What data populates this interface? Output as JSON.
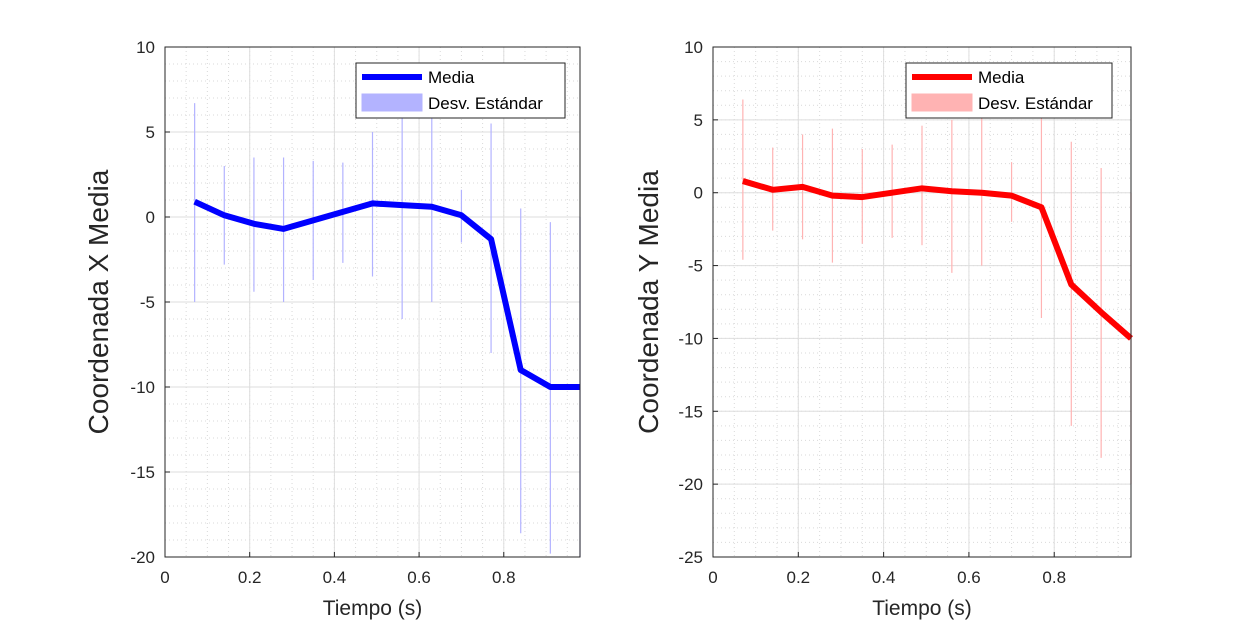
{
  "chart_data": [
    {
      "type": "line",
      "ylabel": "Coordenada X Media",
      "xlabel": "Tiempo (s)",
      "xlim": [
        0,
        0.98
      ],
      "ylim": [
        -20,
        10
      ],
      "xticks": [
        0,
        0.2,
        0.4,
        0.6,
        0.8
      ],
      "xtick_labels": [
        "0",
        "0.2",
        "0.4",
        "0.6",
        "0.8"
      ],
      "yticks": [
        10,
        5,
        0,
        -5,
        -10,
        -15,
        -20
      ],
      "ytick_labels": [
        "10",
        "5",
        "0",
        "-5",
        "-10",
        "-15",
        "-20"
      ],
      "grid": true,
      "legend": {
        "location": "top-right",
        "entries": [
          "Media",
          "Desv. Estándar"
        ]
      },
      "color": "#0000ff",
      "std_color": "#b3b3ff",
      "series": [
        {
          "name": "Media",
          "x": [
            0.07,
            0.14,
            0.21,
            0.28,
            0.35,
            0.42,
            0.49,
            0.56,
            0.63,
            0.7,
            0.77,
            0.84,
            0.91,
            0.98
          ],
          "y": [
            0.9,
            0.1,
            -0.4,
            -0.7,
            -0.2,
            0.3,
            0.8,
            0.7,
            0.6,
            0.1,
            -1.3,
            -9.0,
            -10.0,
            -10.0
          ]
        },
        {
          "name": "Desv. Estándar",
          "x": [
            0.07,
            0.14,
            0.21,
            0.28,
            0.35,
            0.42,
            0.49,
            0.56,
            0.63,
            0.7,
            0.77,
            0.84,
            0.91,
            0.98
          ],
          "lower": [
            -5.0,
            -2.8,
            -4.4,
            -5.0,
            -3.7,
            -2.7,
            -3.5,
            -6.0,
            -5.0,
            -1.5,
            -8.0,
            -18.6,
            -19.8,
            -20.0
          ],
          "upper": [
            6.7,
            3.0,
            3.5,
            3.5,
            3.3,
            3.2,
            5.0,
            5.8,
            6.2,
            1.6,
            5.5,
            0.5,
            -0.3,
            0.0
          ]
        }
      ]
    },
    {
      "type": "line",
      "ylabel": "Coordenada Y Media",
      "xlabel": "Tiempo (s)",
      "xlim": [
        0,
        0.98
      ],
      "ylim": [
        -25,
        10
      ],
      "xticks": [
        0,
        0.2,
        0.4,
        0.6,
        0.8
      ],
      "xtick_labels": [
        "0",
        "0.2",
        "0.4",
        "0.6",
        "0.8"
      ],
      "yticks": [
        10,
        5,
        0,
        -5,
        -10,
        -15,
        -20,
        -25
      ],
      "ytick_labels": [
        "10",
        "5",
        "0",
        "-5",
        "-10",
        "-15",
        "-20",
        "-25"
      ],
      "grid": true,
      "legend": {
        "location": "top-right",
        "entries": [
          "Media",
          "Desv. Estándar"
        ]
      },
      "color": "#ff0000",
      "std_color": "#ffb3b3",
      "series": [
        {
          "name": "Media",
          "x": [
            0.07,
            0.14,
            0.21,
            0.28,
            0.35,
            0.42,
            0.49,
            0.56,
            0.63,
            0.7,
            0.77,
            0.84,
            0.91,
            0.98
          ],
          "y": [
            0.8,
            0.2,
            0.4,
            -0.2,
            -0.3,
            0.0,
            0.3,
            0.1,
            0.0,
            -0.2,
            -1.0,
            -6.3,
            -8.2,
            -10.0
          ]
        },
        {
          "name": "Desv. Estándar",
          "x": [
            0.07,
            0.14,
            0.21,
            0.28,
            0.35,
            0.42,
            0.49,
            0.56,
            0.63,
            0.7,
            0.77,
            0.84,
            0.91,
            0.98
          ],
          "lower": [
            -4.6,
            -2.6,
            -3.2,
            -4.8,
            -3.5,
            -3.1,
            -3.6,
            -5.5,
            -5.0,
            -2.0,
            -8.6,
            -16.0,
            -18.2,
            -20.0
          ],
          "upper": [
            6.4,
            3.1,
            4.0,
            4.4,
            3.0,
            3.3,
            4.6,
            5.0,
            5.2,
            2.1,
            5.3,
            3.5,
            1.7,
            0.0
          ]
        }
      ]
    }
  ]
}
